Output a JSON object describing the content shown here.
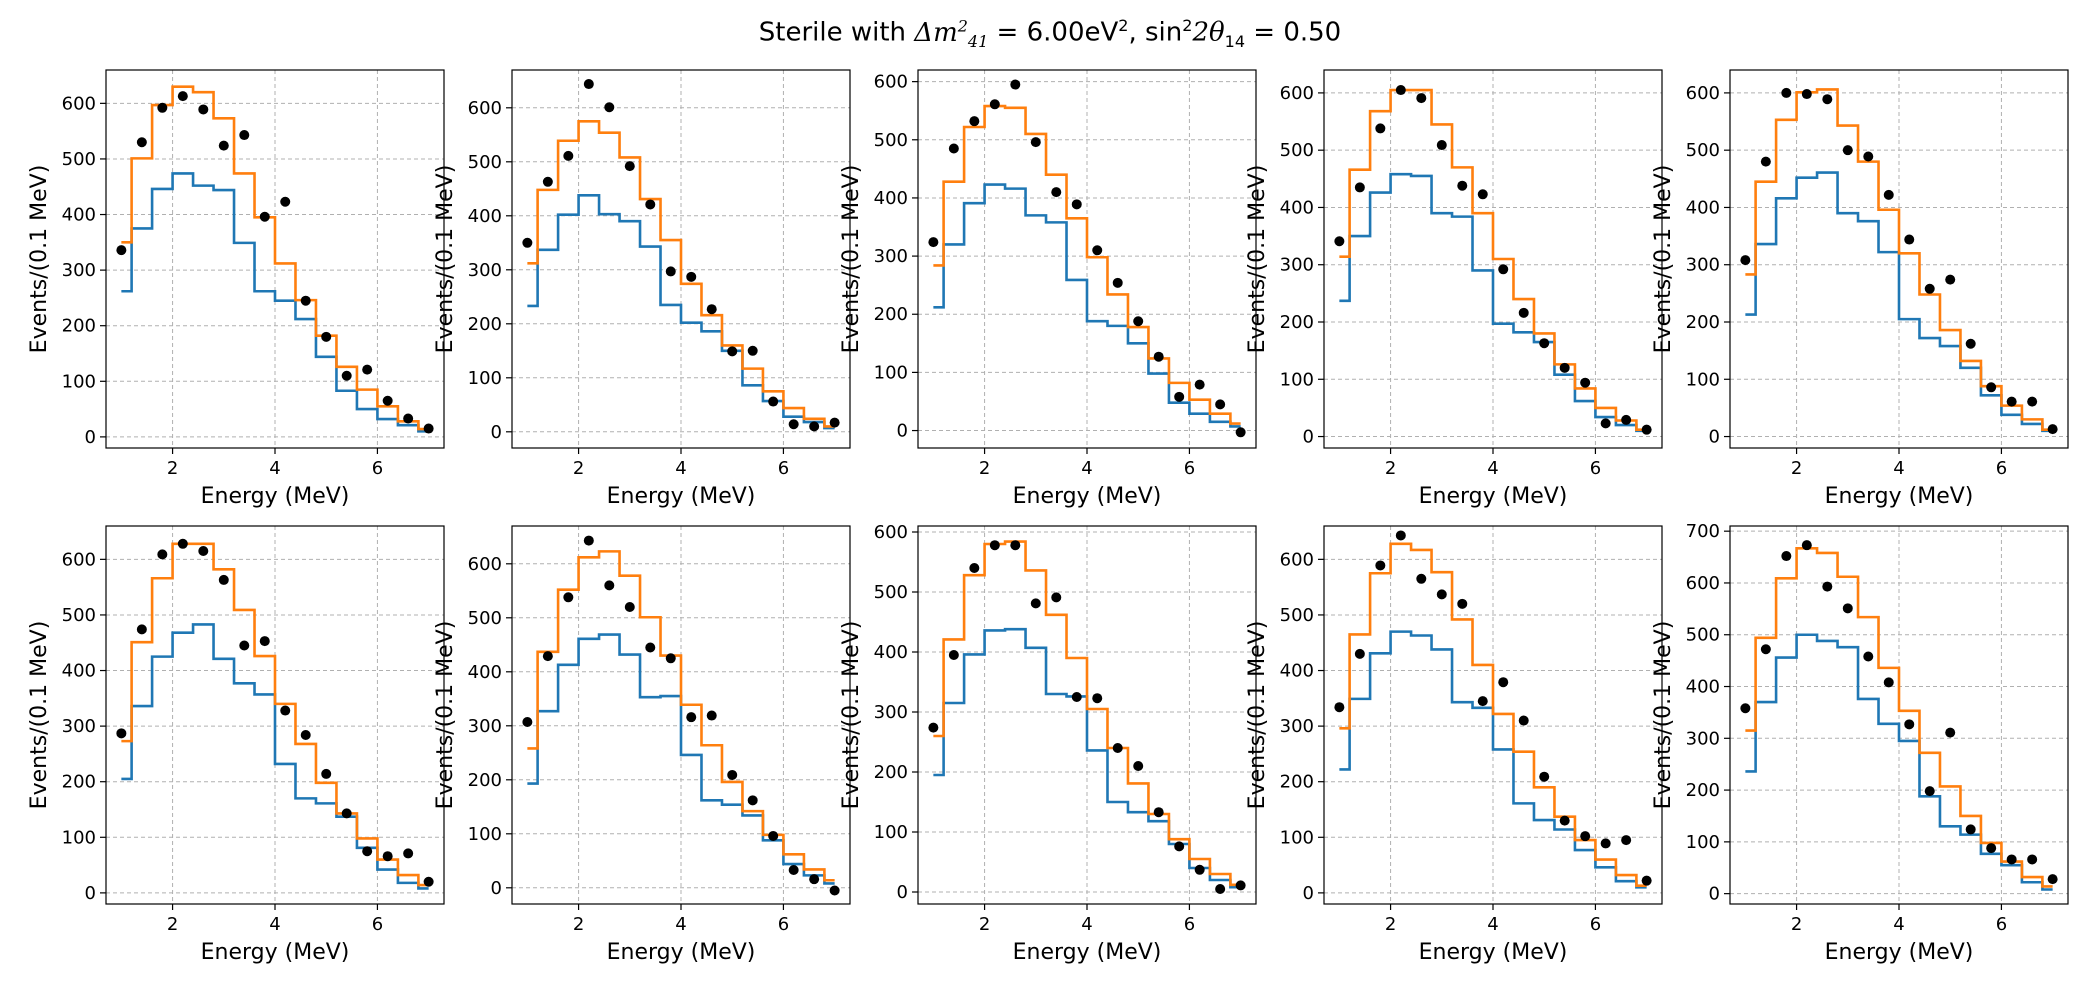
{
  "title": {
    "prefix": "Sterile with ",
    "dm_label": "Δm",
    "dm_sup": "2",
    "dm_sub": "41",
    "dm_rest": " = 6.00eV",
    "dm_unit_sup": "2",
    "sep": ", sin",
    "sin_sup": "2",
    "theta": "2θ",
    "theta_sub": "14",
    "rest": " = 0.50"
  },
  "chart_data": [
    {
      "type": "line",
      "xlabel": "Energy (MeV)",
      "ylabel": "Events/(0.1 MeV)",
      "xlim": [
        0.7,
        7.3
      ],
      "ylim": [
        -20,
        660
      ],
      "xticks": [
        2,
        4,
        6
      ],
      "yticks": [
        0,
        100,
        200,
        300,
        400,
        500,
        600
      ],
      "edges": [
        1.0,
        1.2,
        1.6,
        2.0,
        2.4,
        2.8,
        3.2,
        3.6,
        4.0,
        4.4,
        4.8,
        5.2,
        5.6,
        6.0,
        6.4,
        6.8,
        7.0
      ],
      "series": [
        {
          "values": [
            262,
            375,
            446,
            474,
            452,
            444,
            349,
            262,
            245,
            212,
            144,
            83,
            50,
            32,
            21,
            10
          ],
          "color": "#1f77b4"
        },
        {
          "values": [
            350,
            501,
            597,
            630,
            620,
            573,
            474,
            395,
            312,
            246,
            182,
            126,
            85,
            55,
            28,
            14
          ],
          "color": "#ff7f0e"
        }
      ],
      "points": {
        "x": [
          1.0,
          1.4,
          1.8,
          2.2,
          2.6,
          3.0,
          3.4,
          3.8,
          4.2,
          4.6,
          5.0,
          5.4,
          5.8,
          6.2,
          6.6,
          7.0
        ],
        "y": [
          336,
          530,
          592,
          613,
          589,
          524,
          543,
          396,
          423,
          245,
          180,
          110,
          121,
          65,
          33,
          15
        ]
      }
    },
    {
      "type": "line",
      "xlabel": "Energy (MeV)",
      "ylabel": "Events/(0.1 MeV)",
      "xlim": [
        0.7,
        7.3
      ],
      "ylim": [
        -30,
        670
      ],
      "xticks": [
        2,
        4,
        6
      ],
      "yticks": [
        0,
        100,
        200,
        300,
        400,
        500,
        600
      ],
      "edges": [
        1.0,
        1.2,
        1.6,
        2.0,
        2.4,
        2.8,
        3.2,
        3.6,
        4.0,
        4.4,
        4.8,
        5.2,
        5.6,
        6.0,
        6.4,
        6.8,
        7.0
      ],
      "series": [
        {
          "values": [
            233,
            337,
            402,
            438,
            403,
            390,
            343,
            235,
            202,
            186,
            150,
            86,
            57,
            28,
            18,
            7
          ],
          "color": "#1f77b4"
        },
        {
          "values": [
            312,
            448,
            539,
            575,
            554,
            508,
            431,
            355,
            274,
            216,
            160,
            117,
            75,
            44,
            24,
            10
          ],
          "color": "#ff7f0e"
        }
      ],
      "points": {
        "x": [
          1.0,
          1.4,
          1.8,
          2.2,
          2.6,
          3.0,
          3.4,
          3.8,
          4.2,
          4.6,
          5.0,
          5.4,
          5.8,
          6.2,
          6.6,
          7.0
        ],
        "y": [
          350,
          463,
          511,
          644,
          601,
          492,
          421,
          297,
          287,
          227,
          149,
          150,
          56,
          14,
          10,
          17
        ]
      }
    },
    {
      "type": "line",
      "xlabel": "Energy (MeV)",
      "ylabel": "Events/(0.1 MeV)",
      "xlim": [
        0.7,
        7.3
      ],
      "ylim": [
        -30,
        620
      ],
      "xticks": [
        2,
        4,
        6
      ],
      "yticks": [
        0,
        100,
        200,
        300,
        400,
        500,
        600
      ],
      "edges": [
        1.0,
        1.2,
        1.6,
        2.0,
        2.4,
        2.8,
        3.2,
        3.6,
        4.0,
        4.4,
        4.8,
        5.2,
        5.6,
        6.0,
        6.4,
        6.8,
        7.0
      ],
      "series": [
        {
          "values": [
            212,
            320,
            391,
            423,
            416,
            370,
            358,
            259,
            188,
            180,
            150,
            98,
            48,
            29,
            15,
            7
          ],
          "color": "#1f77b4"
        },
        {
          "values": [
            284,
            428,
            522,
            558,
            555,
            510,
            440,
            365,
            298,
            234,
            178,
            124,
            82,
            53,
            29,
            12
          ],
          "color": "#ff7f0e"
        }
      ],
      "points": {
        "x": [
          1.0,
          1.4,
          1.8,
          2.2,
          2.6,
          3.0,
          3.4,
          3.8,
          4.2,
          4.6,
          5.0,
          5.4,
          5.8,
          6.2,
          6.6,
          7.0
        ],
        "y": [
          324,
          485,
          532,
          561,
          595,
          496,
          410,
          389,
          310,
          254,
          188,
          127,
          58,
          79,
          45,
          -3
        ]
      }
    },
    {
      "type": "line",
      "xlabel": "Energy (MeV)",
      "ylabel": "Events/(0.1 MeV)",
      "xlim": [
        0.7,
        7.3
      ],
      "ylim": [
        -20,
        640
      ],
      "xticks": [
        2,
        4,
        6
      ],
      "yticks": [
        0,
        100,
        200,
        300,
        400,
        500,
        600
      ],
      "edges": [
        1.0,
        1.2,
        1.6,
        2.0,
        2.4,
        2.8,
        3.2,
        3.6,
        4.0,
        4.4,
        4.8,
        5.2,
        5.6,
        6.0,
        6.4,
        6.8,
        7.0
      ],
      "series": [
        {
          "values": [
            237,
            350,
            426,
            458,
            455,
            390,
            384,
            290,
            197,
            182,
            165,
            108,
            62,
            34,
            20,
            10
          ],
          "color": "#1f77b4"
        },
        {
          "values": [
            314,
            466,
            568,
            605,
            605,
            545,
            470,
            390,
            310,
            240,
            180,
            126,
            84,
            50,
            28,
            12
          ],
          "color": "#ff7f0e"
        }
      ],
      "points": {
        "x": [
          1.0,
          1.4,
          1.8,
          2.2,
          2.6,
          3.0,
          3.4,
          3.8,
          4.2,
          4.6,
          5.0,
          5.4,
          5.8,
          6.2,
          6.6,
          7.0
        ],
        "y": [
          341,
          435,
          538,
          605,
          591,
          509,
          438,
          423,
          292,
          216,
          163,
          120,
          94,
          23,
          29,
          12
        ]
      }
    },
    {
      "type": "line",
      "xlabel": "Energy (MeV)",
      "ylabel": "Events/(0.1 MeV)",
      "xlim": [
        0.7,
        7.3
      ],
      "ylim": [
        -20,
        640
      ],
      "xticks": [
        2,
        4,
        6
      ],
      "yticks": [
        0,
        100,
        200,
        300,
        400,
        500,
        600
      ],
      "edges": [
        1.0,
        1.2,
        1.6,
        2.0,
        2.4,
        2.8,
        3.2,
        3.6,
        4.0,
        4.4,
        4.8,
        5.2,
        5.6,
        6.0,
        6.4,
        6.8,
        7.0
      ],
      "series": [
        {
          "values": [
            213,
            336,
            416,
            452,
            461,
            390,
            376,
            322,
            205,
            172,
            158,
            120,
            72,
            38,
            22,
            10
          ],
          "color": "#1f77b4"
        },
        {
          "values": [
            283,
            445,
            553,
            601,
            606,
            543,
            480,
            396,
            320,
            248,
            186,
            132,
            88,
            54,
            30,
            12
          ],
          "color": "#ff7f0e"
        }
      ],
      "points": {
        "x": [
          1.0,
          1.4,
          1.8,
          2.2,
          2.6,
          3.0,
          3.4,
          3.8,
          4.2,
          4.6,
          5.0,
          5.4,
          5.8,
          6.2,
          6.6,
          7.0
        ],
        "y": [
          308,
          480,
          600,
          598,
          589,
          500,
          489,
          422,
          344,
          258,
          274,
          162,
          86,
          61,
          61,
          13
        ]
      }
    },
    {
      "type": "line",
      "xlabel": "Energy (MeV)",
      "ylabel": "Events/(0.1 MeV)",
      "xlim": [
        0.7,
        7.3
      ],
      "ylim": [
        -20,
        660
      ],
      "xticks": [
        2,
        4,
        6
      ],
      "yticks": [
        0,
        100,
        200,
        300,
        400,
        500,
        600
      ],
      "edges": [
        1.0,
        1.2,
        1.6,
        2.0,
        2.4,
        2.8,
        3.2,
        3.6,
        4.0,
        4.4,
        4.8,
        5.2,
        5.6,
        6.0,
        6.4,
        6.8,
        7.0
      ],
      "series": [
        {
          "values": [
            205,
            336,
            425,
            468,
            483,
            421,
            377,
            357,
            232,
            170,
            161,
            137,
            81,
            42,
            18,
            8
          ],
          "color": "#1f77b4"
        },
        {
          "values": [
            273,
            451,
            566,
            628,
            628,
            582,
            509,
            426,
            340,
            268,
            198,
            143,
            98,
            60,
            32,
            14
          ],
          "color": "#ff7f0e"
        }
      ],
      "points": {
        "x": [
          1.0,
          1.4,
          1.8,
          2.2,
          2.6,
          3.0,
          3.4,
          3.8,
          4.2,
          4.6,
          5.0,
          5.4,
          5.8,
          6.2,
          6.6,
          7.0
        ],
        "y": [
          287,
          474,
          609,
          628,
          615,
          563,
          445,
          453,
          328,
          284,
          214,
          143,
          75,
          66,
          71,
          20
        ]
      }
    },
    {
      "type": "line",
      "xlabel": "Energy (MeV)",
      "ylabel": "Events/(0.1 MeV)",
      "xlim": [
        0.7,
        7.3
      ],
      "ylim": [
        -30,
        670
      ],
      "xticks": [
        2,
        4,
        6
      ],
      "yticks": [
        0,
        100,
        200,
        300,
        400,
        500,
        600
      ],
      "edges": [
        1.0,
        1.2,
        1.6,
        2.0,
        2.4,
        2.8,
        3.2,
        3.6,
        4.0,
        4.4,
        4.8,
        5.2,
        5.6,
        6.0,
        6.4,
        6.8,
        7.0
      ],
      "series": [
        {
          "values": [
            193,
            327,
            413,
            461,
            469,
            432,
            353,
            355,
            246,
            162,
            154,
            134,
            88,
            44,
            23,
            8
          ],
          "color": "#1f77b4"
        },
        {
          "values": [
            258,
            437,
            552,
            612,
            623,
            578,
            501,
            430,
            339,
            264,
            196,
            142,
            98,
            62,
            34,
            14
          ],
          "color": "#ff7f0e"
        }
      ],
      "points": {
        "x": [
          1.0,
          1.4,
          1.8,
          2.2,
          2.6,
          3.0,
          3.4,
          3.8,
          4.2,
          4.6,
          5.0,
          5.4,
          5.8,
          6.2,
          6.6,
          7.0
        ],
        "y": [
          307,
          429,
          538,
          643,
          560,
          520,
          445,
          425,
          316,
          319,
          209,
          162,
          96,
          33,
          16,
          -5
        ]
      }
    },
    {
      "type": "line",
      "xlabel": "Energy (MeV)",
      "ylabel": "Events/(0.1 MeV)",
      "xlim": [
        0.7,
        7.3
      ],
      "ylim": [
        -20,
        610
      ],
      "xticks": [
        2,
        4,
        6
      ],
      "yticks": [
        0,
        100,
        200,
        300,
        400,
        500,
        600
      ],
      "edges": [
        1.0,
        1.2,
        1.6,
        2.0,
        2.4,
        2.8,
        3.2,
        3.6,
        4.0,
        4.4,
        4.8,
        5.2,
        5.6,
        6.0,
        6.4,
        6.8,
        7.0
      ],
      "series": [
        {
          "values": [
            195,
            315,
            396,
            436,
            438,
            407,
            330,
            326,
            236,
            150,
            133,
            118,
            80,
            40,
            20,
            8
          ],
          "color": "#1f77b4"
        },
        {
          "values": [
            260,
            421,
            528,
            580,
            584,
            536,
            462,
            390,
            305,
            240,
            181,
            130,
            88,
            55,
            30,
            12
          ],
          "color": "#ff7f0e"
        }
      ],
      "points": {
        "x": [
          1.0,
          1.4,
          1.8,
          2.2,
          2.6,
          3.0,
          3.4,
          3.8,
          4.2,
          4.6,
          5.0,
          5.4,
          5.8,
          6.2,
          6.6,
          7.0
        ],
        "y": [
          274,
          395,
          540,
          578,
          578,
          481,
          491,
          325,
          323,
          240,
          210,
          133,
          76,
          37,
          5,
          11
        ]
      }
    },
    {
      "type": "line",
      "xlabel": "Energy (MeV)",
      "ylabel": "Events/(0.1 MeV)",
      "xlim": [
        0.7,
        7.3
      ],
      "ylim": [
        -20,
        660
      ],
      "xticks": [
        2,
        4,
        6
      ],
      "yticks": [
        0,
        100,
        200,
        300,
        400,
        500,
        600
      ],
      "edges": [
        1.0,
        1.2,
        1.6,
        2.0,
        2.4,
        2.8,
        3.2,
        3.6,
        4.0,
        4.4,
        4.8,
        5.2,
        5.6,
        6.0,
        6.4,
        6.8,
        7.0
      ],
      "series": [
        {
          "values": [
            222,
            349,
            431,
            470,
            463,
            438,
            343,
            333,
            258,
            161,
            131,
            114,
            77,
            46,
            21,
            10
          ],
          "color": "#1f77b4"
        },
        {
          "values": [
            296,
            465,
            575,
            628,
            617,
            577,
            492,
            410,
            322,
            254,
            190,
            137,
            95,
            60,
            32,
            13
          ],
          "color": "#ff7f0e"
        }
      ],
      "points": {
        "x": [
          1.0,
          1.4,
          1.8,
          2.2,
          2.6,
          3.0,
          3.4,
          3.8,
          4.2,
          4.6,
          5.0,
          5.4,
          5.8,
          6.2,
          6.6,
          7.0
        ],
        "y": [
          334,
          430,
          589,
          643,
          565,
          537,
          520,
          345,
          379,
          310,
          209,
          130,
          102,
          89,
          95,
          22
        ]
      }
    },
    {
      "type": "line",
      "xlabel": "Energy (MeV)",
      "ylabel": "Events/(0.1 MeV)",
      "xlim": [
        0.7,
        7.3
      ],
      "ylim": [
        -20,
        710
      ],
      "xticks": [
        2,
        4,
        6
      ],
      "yticks": [
        0,
        100,
        200,
        300,
        400,
        500,
        600,
        700
      ],
      "edges": [
        1.0,
        1.2,
        1.6,
        2.0,
        2.4,
        2.8,
        3.2,
        3.6,
        4.0,
        4.4,
        4.8,
        5.2,
        5.6,
        6.0,
        6.4,
        6.8,
        7.0
      ],
      "series": [
        {
          "values": [
            236,
            370,
            456,
            500,
            488,
            476,
            376,
            328,
            295,
            188,
            130,
            114,
            77,
            55,
            22,
            8
          ],
          "color": "#1f77b4"
        },
        {
          "values": [
            315,
            494,
            609,
            667,
            658,
            612,
            534,
            436,
            353,
            272,
            207,
            150,
            98,
            62,
            32,
            14
          ],
          "color": "#ff7f0e"
        }
      ],
      "points": {
        "x": [
          1.0,
          1.4,
          1.8,
          2.2,
          2.6,
          3.0,
          3.4,
          3.8,
          4.2,
          4.6,
          5.0,
          5.4,
          5.8,
          6.2,
          6.6,
          7.0
        ],
        "y": [
          358,
          472,
          652,
          673,
          593,
          551,
          458,
          408,
          327,
          198,
          311,
          124,
          88,
          66,
          66,
          28
        ]
      }
    }
  ]
}
